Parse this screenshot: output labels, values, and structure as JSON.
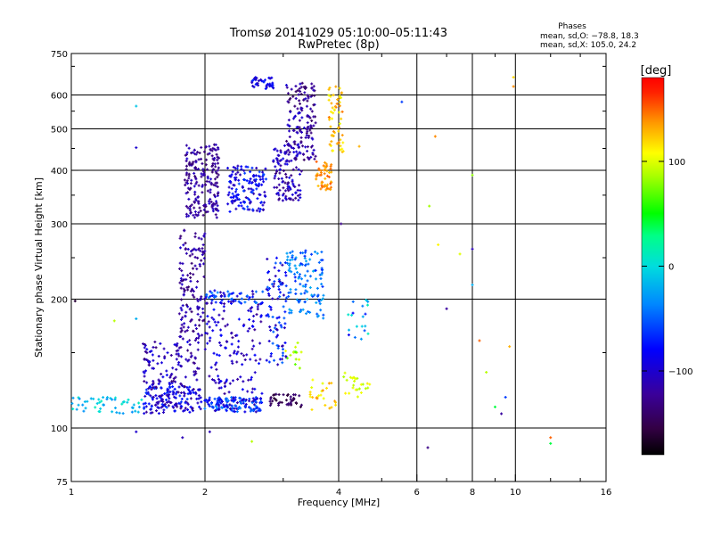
{
  "header": {
    "title_line1": "Tromsø 20141029 05:10:00–05:11:43",
    "title_line2": "RwPretec (8p)",
    "stats_title": "Phases",
    "stats_line1": "mean, sd,O: −78.8, 18.3",
    "stats_line2": "mean, sd,X: 105.0, 24.2"
  },
  "colorbar": {
    "unit_label": "[deg]",
    "tick_labels": [
      "100",
      "0",
      "−100"
    ],
    "tick_values": [
      100,
      0,
      -100
    ],
    "range": [
      -180,
      180
    ]
  },
  "chart_data": {
    "type": "scatter",
    "xlabel": "Frequency [MHz]",
    "ylabel": "Stationary phase Virtual Height [km]",
    "xscale": "log",
    "yscale": "log",
    "xlim": [
      1,
      16
    ],
    "ylim": [
      75,
      750
    ],
    "xticks": [
      1,
      2,
      4,
      6,
      8,
      10,
      16
    ],
    "xtick_labels": [
      "1",
      "2",
      "4",
      "6",
      "8",
      "10",
      "16"
    ],
    "yticks": [
      75,
      100,
      200,
      300,
      400,
      500,
      600,
      750
    ],
    "ytick_labels": [
      "75",
      "100",
      "200",
      "300",
      "400",
      "500",
      "600",
      "750"
    ],
    "grid_x": [
      2,
      4,
      6,
      8,
      10
    ],
    "grid_y": [
      100,
      200,
      300,
      400,
      500,
      600
    ],
    "color_value": "phase [deg]",
    "clusters": [
      {
        "x_range": [
          1.0,
          1.45
        ],
        "y_range": [
          108,
          118
        ],
        "phase": -10,
        "spread": 25,
        "count": 50
      },
      {
        "x_range": [
          1.45,
          1.95
        ],
        "y_range": [
          108,
          125
        ],
        "phase": -95,
        "spread": 35,
        "count": 160
      },
      {
        "x_range": [
          1.95,
          2.7
        ],
        "y_range": [
          109,
          118
        ],
        "phase": -75,
        "spread": 40,
        "count": 150
      },
      {
        "x_range": [
          1.45,
          1.95
        ],
        "y_range": [
          125,
          160
        ],
        "phase": -110,
        "spread": 25,
        "count": 110
      },
      {
        "x_range": [
          1.75,
          2.0
        ],
        "y_range": [
          160,
          290
        ],
        "phase": -120,
        "spread": 20,
        "count": 140
      },
      {
        "x_range": [
          2.0,
          2.7
        ],
        "y_range": [
          120,
          210
        ],
        "phase": -100,
        "spread": 25,
        "count": 150
      },
      {
        "x_range": [
          2.0,
          2.7
        ],
        "y_range": [
          195,
          210
        ],
        "phase": -55,
        "spread": 25,
        "count": 40
      },
      {
        "x_range": [
          2.75,
          3.05
        ],
        "y_range": [
          140,
          250
        ],
        "phase": -80,
        "spread": 35,
        "count": 90
      },
      {
        "x_range": [
          3.05,
          3.7
        ],
        "y_range": [
          180,
          260
        ],
        "phase": -45,
        "spread": 25,
        "count": 120
      },
      {
        "x_range": [
          2.8,
          3.3
        ],
        "y_range": [
          112,
          120
        ],
        "phase": -150,
        "spread": 15,
        "count": 40
      },
      {
        "x_range": [
          3.0,
          3.35
        ],
        "y_range": [
          135,
          160
        ],
        "phase": 85,
        "spread": 20,
        "count": 15
      },
      {
        "x_range": [
          3.45,
          3.95
        ],
        "y_range": [
          110,
          130
        ],
        "phase": 120,
        "spread": 20,
        "count": 25
      },
      {
        "x_range": [
          4.1,
          4.7
        ],
        "y_range": [
          118,
          135
        ],
        "phase": 100,
        "spread": 15,
        "count": 25
      },
      {
        "x_range": [
          1.8,
          2.15
        ],
        "y_range": [
          310,
          460
        ],
        "phase": -120,
        "spread": 20,
        "count": 200
      },
      {
        "x_range": [
          2.25,
          2.75
        ],
        "y_range": [
          320,
          410
        ],
        "phase": -85,
        "spread": 30,
        "count": 140
      },
      {
        "x_range": [
          2.55,
          2.85
        ],
        "y_range": [
          620,
          660
        ],
        "phase": -85,
        "spread": 25,
        "count": 40
      },
      {
        "x_range": [
          2.85,
          3.3
        ],
        "y_range": [
          340,
          460
        ],
        "phase": -110,
        "spread": 25,
        "count": 110
      },
      {
        "x_range": [
          3.05,
          3.55
        ],
        "y_range": [
          420,
          640
        ],
        "phase": -120,
        "spread": 25,
        "count": 150
      },
      {
        "x_range": [
          3.55,
          3.85
        ],
        "y_range": [
          360,
          420
        ],
        "phase": 140,
        "spread": 15,
        "count": 50
      },
      {
        "x_range": [
          3.8,
          4.1
        ],
        "y_range": [
          440,
          630
        ],
        "phase": 125,
        "spread": 25,
        "count": 60
      },
      {
        "x_range": [
          4.2,
          4.7
        ],
        "y_range": [
          160,
          200
        ],
        "phase": -40,
        "spread": 60,
        "count": 20
      }
    ],
    "isolated_points": [
      {
        "x": 1.02,
        "y": 198,
        "phase": -160
      },
      {
        "x": 1.25,
        "y": 178,
        "phase": 90
      },
      {
        "x": 1.4,
        "y": 565,
        "phase": -10
      },
      {
        "x": 1.4,
        "y": 452,
        "phase": -100
      },
      {
        "x": 1.4,
        "y": 180,
        "phase": -20
      },
      {
        "x": 1.4,
        "y": 98,
        "phase": -100
      },
      {
        "x": 1.78,
        "y": 95,
        "phase": -110
      },
      {
        "x": 2.05,
        "y": 98,
        "phase": -110
      },
      {
        "x": 2.55,
        "y": 93,
        "phase": 90
      },
      {
        "x": 4.05,
        "y": 300,
        "phase": -130
      },
      {
        "x": 4.45,
        "y": 455,
        "phase": 130
      },
      {
        "x": 5.55,
        "y": 578,
        "phase": -60
      },
      {
        "x": 6.35,
        "y": 90,
        "phase": -130
      },
      {
        "x": 6.4,
        "y": 330,
        "phase": 85
      },
      {
        "x": 6.6,
        "y": 480,
        "phase": 140
      },
      {
        "x": 6.7,
        "y": 268,
        "phase": 110
      },
      {
        "x": 7.0,
        "y": 190,
        "phase": -120
      },
      {
        "x": 7.5,
        "y": 255,
        "phase": 100
      },
      {
        "x": 8.0,
        "y": 262,
        "phase": -110
      },
      {
        "x": 8.0,
        "y": 216,
        "phase": -20
      },
      {
        "x": 8.3,
        "y": 160,
        "phase": 150
      },
      {
        "x": 8.6,
        "y": 135,
        "phase": 90
      },
      {
        "x": 9.0,
        "y": 112,
        "phase": 40
      },
      {
        "x": 9.3,
        "y": 108,
        "phase": -120
      },
      {
        "x": 9.5,
        "y": 118,
        "phase": -60
      },
      {
        "x": 9.7,
        "y": 155,
        "phase": 130
      },
      {
        "x": 9.9,
        "y": 660,
        "phase": 120
      },
      {
        "x": 9.9,
        "y": 628,
        "phase": 140
      },
      {
        "x": 8.0,
        "y": 390,
        "phase": 80
      },
      {
        "x": 12.0,
        "y": 95,
        "phase": 150
      },
      {
        "x": 12.0,
        "y": 92,
        "phase": 40
      }
    ]
  }
}
